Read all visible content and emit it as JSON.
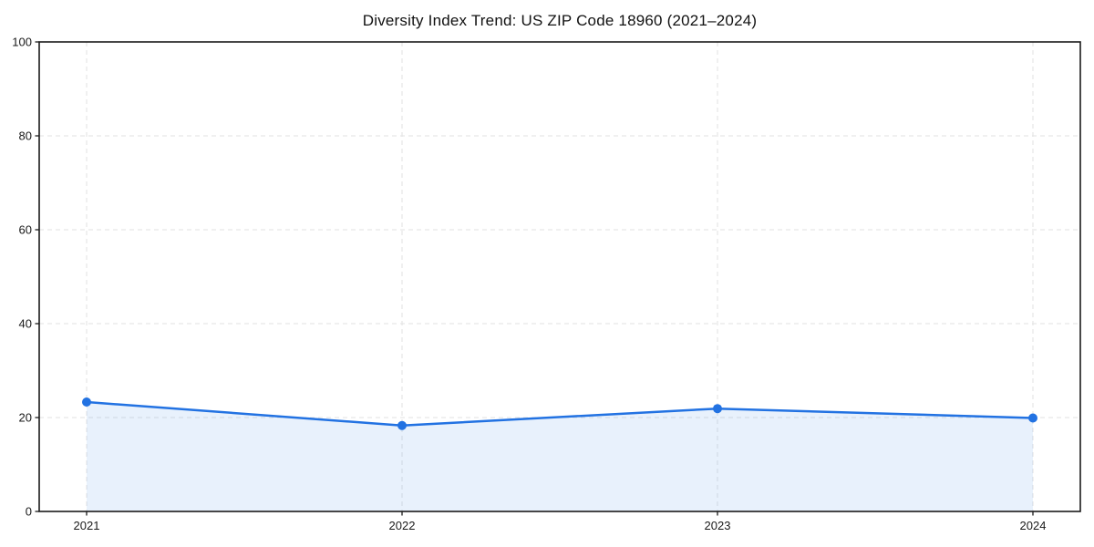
{
  "chart_data": {
    "type": "area",
    "title": "Diversity Index Trend: US ZIP Code 18960 (2021–2024)",
    "x": [
      2021,
      2022,
      2023,
      2024
    ],
    "values": [
      23.3,
      18.3,
      21.9,
      19.9
    ],
    "xlabel": "",
    "ylabel": "",
    "ylim": [
      0,
      100
    ],
    "yticks": [
      0,
      20,
      40,
      60,
      80,
      100
    ],
    "ytick_labels": [
      "0",
      "20",
      "40",
      "60",
      "80",
      "100"
    ],
    "xtick_labels": [
      "2021",
      "2022",
      "2023",
      "2024"
    ],
    "grid": true,
    "grid_style": "dashed",
    "legend": "none",
    "marker": "circle",
    "colors": {
      "line": "#2272e2",
      "marker": "#2272e2",
      "fill": "#2272e2",
      "fill_opacity": 0.1,
      "grid": "#e2e2e2",
      "spine": "#1a1a1a",
      "tick_text": "#1a1a1a",
      "background": "#ffffff"
    }
  }
}
